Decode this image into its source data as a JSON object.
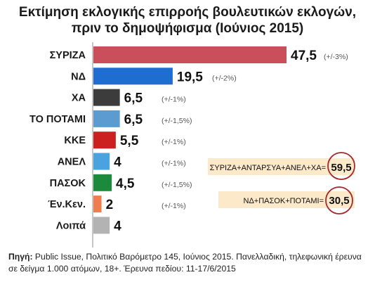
{
  "title_line1": "Εκτίμηση εκλογικής επιρροής βουλευτικών εκλογών,",
  "title_line2": "πριν το δημοψήφισμα (Ιούνιος 2015)",
  "chart_data": {
    "type": "bar",
    "orientation": "horizontal",
    "categories": [
      "ΣΥΡΙΖΑ",
      "ΝΔ",
      "ΧΑ",
      "ΤΟ ΠΟΤΑΜΙ",
      "ΚΚΕ",
      "ΑΝΕΛ",
      "ΠΑΣΟΚ",
      "Έν.Κεν.",
      "Λοιπά"
    ],
    "values": [
      47.5,
      19.5,
      6.5,
      6.5,
      5.5,
      4,
      4.5,
      2,
      4
    ],
    "value_labels": [
      "47,5",
      "19,5",
      "6,5",
      "6,5",
      "5,5",
      "4",
      "4,5",
      "2",
      "4"
    ],
    "margins": [
      "(+/-3%)",
      "(+/-2%)",
      "(+/-1%)",
      "(+/-1,5%)",
      "(+/-1%)",
      "(+/-1%)",
      "(+/-1,5%)",
      "(+/-1%)",
      ""
    ],
    "colors": [
      "#c9505a",
      "#1e6ed1",
      "#3c3c3c",
      "#5b9bd0",
      "#cc1f1f",
      "#4aa3df",
      "#1b8a3a",
      "#ef7d4f",
      "#b3b3b3"
    ],
    "xlim": [
      0,
      50
    ],
    "annotations": [
      {
        "label": "ΣΥΡΙΖΑ+ΑΝΤΑΡΣΥΑ+ΑΝΕΛ+ΧΑ=",
        "value": "59,5"
      },
      {
        "label": "ΝΔ+ΠΑΣΟΚ+ΠΟΤΑΜΙ=",
        "value": "30,5"
      }
    ]
  },
  "source_label": "Πηγή:",
  "source_text": " Public Issue, Πολιτικό Βαρόμετρο 145, Ιούνιος 2015. Πανελλαδική, τηλεφωνική έρευνα σε δείγμα 1.000 ατόμων, 18+. Έρευνα πεδίου: 11-17/6/2015"
}
